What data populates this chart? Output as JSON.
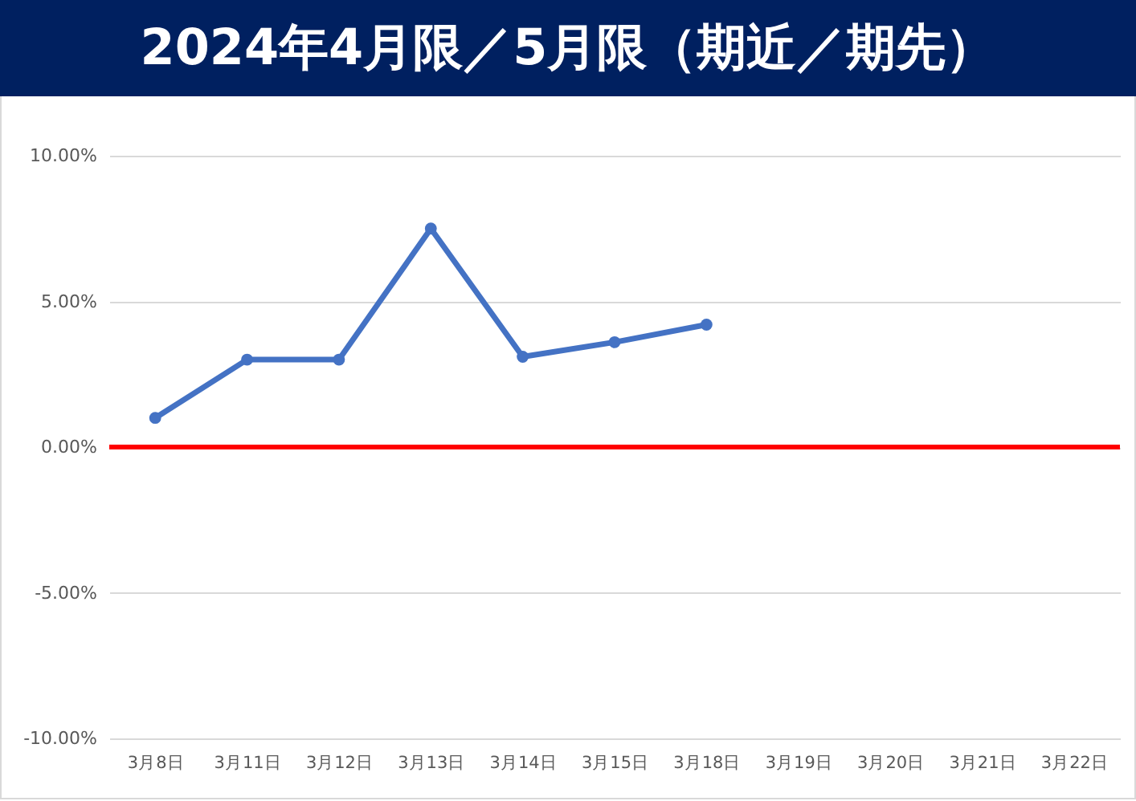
{
  "chart_data": {
    "type": "line",
    "title": "2024年4月限／5月限（期近／期先）",
    "categories": [
      "3月8日",
      "3月11日",
      "3月12日",
      "3月13日",
      "3月14日",
      "3月15日",
      "3月18日",
      "3月19日",
      "3月20日",
      "3月21日",
      "3月22日"
    ],
    "series": [
      {
        "color": "#4472c4",
        "values": [
          1.0,
          3.0,
          3.0,
          7.5,
          3.1,
          3.6,
          4.2,
          null,
          null,
          null,
          null
        ]
      }
    ],
    "ylim": [
      -10,
      10
    ],
    "yticks": [
      {
        "value": -10,
        "label": "-10.00%"
      },
      {
        "value": -5,
        "label": "-5.00%"
      },
      {
        "value": 0,
        "label": "0.00%"
      },
      {
        "value": 5,
        "label": "5.00%"
      },
      {
        "value": 10,
        "label": "10.00%"
      }
    ],
    "grid": "y",
    "marker": "circle",
    "line_style": "solid",
    "ref_lines": [
      {
        "axis": "y",
        "value": 0,
        "color": "#ff0000"
      }
    ]
  }
}
